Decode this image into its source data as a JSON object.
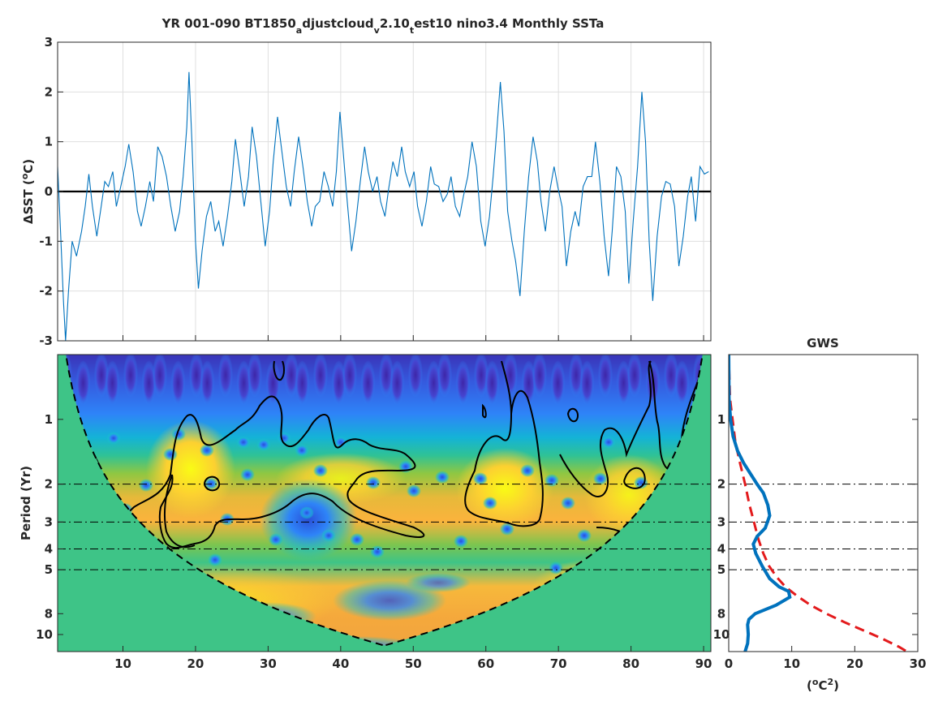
{
  "chart_data": [
    {
      "type": "line",
      "title": {
        "p1": "YR 001-090 BT1850",
        "s1": "a",
        "p2": "djustcloud",
        "s2": "v",
        "p3": "2.10",
        "s3": "t",
        "p4": "est10 nino3.4 Monthly SSTa"
      },
      "ylabel": {
        "delta": "Δ",
        "rest": "SST (",
        "deg": "o",
        "unit": "C)"
      },
      "xlim": [
        1,
        91
      ],
      "ylim": [
        -3,
        3
      ],
      "xticks": [
        10,
        20,
        30,
        40,
        50,
        60,
        70,
        80,
        90
      ],
      "yticks": [
        -3,
        -2,
        -1,
        0,
        1,
        2,
        3
      ],
      "grid": true,
      "zero_line": 0,
      "series": [
        {
          "color": "#0072bd",
          "points": [
            [
              1.0,
              0.5
            ],
            [
              1.4,
              -0.8
            ],
            [
              1.8,
              -2.2
            ],
            [
              2.1,
              -3.0
            ],
            [
              2.5,
              -2.0
            ],
            [
              3.0,
              -1.0
            ],
            [
              3.6,
              -1.3
            ],
            [
              4.3,
              -0.8
            ],
            [
              4.8,
              -0.3
            ],
            [
              5.3,
              0.35
            ],
            [
              5.8,
              -0.3
            ],
            [
              6.4,
              -0.9
            ],
            [
              7.0,
              -0.3
            ],
            [
              7.5,
              0.2
            ],
            [
              8.0,
              0.1
            ],
            [
              8.6,
              0.4
            ],
            [
              9.1,
              -0.3
            ],
            [
              9.7,
              0.1
            ],
            [
              10.3,
              0.5
            ],
            [
              10.8,
              0.95
            ],
            [
              11.4,
              0.4
            ],
            [
              12.0,
              -0.4
            ],
            [
              12.5,
              -0.7
            ],
            [
              13.1,
              -0.3
            ],
            [
              13.7,
              0.2
            ],
            [
              14.2,
              -0.2
            ],
            [
              14.8,
              0.9
            ],
            [
              15.4,
              0.7
            ],
            [
              16.0,
              0.3
            ],
            [
              16.6,
              -0.3
            ],
            [
              17.2,
              -0.8
            ],
            [
              17.8,
              -0.4
            ],
            [
              18.3,
              0.3
            ],
            [
              18.8,
              1.3
            ],
            [
              19.1,
              2.4
            ],
            [
              19.5,
              1.0
            ],
            [
              20.0,
              -1.0
            ],
            [
              20.4,
              -1.95
            ],
            [
              20.9,
              -1.2
            ],
            [
              21.5,
              -0.5
            ],
            [
              22.1,
              -0.2
            ],
            [
              22.7,
              -0.8
            ],
            [
              23.2,
              -0.6
            ],
            [
              23.8,
              -1.1
            ],
            [
              24.4,
              -0.5
            ],
            [
              25.0,
              0.2
            ],
            [
              25.5,
              1.05
            ],
            [
              26.1,
              0.4
            ],
            [
              26.7,
              -0.3
            ],
            [
              27.3,
              0.3
            ],
            [
              27.8,
              1.3
            ],
            [
              28.4,
              0.7
            ],
            [
              29.0,
              -0.2
            ],
            [
              29.6,
              -1.1
            ],
            [
              30.2,
              -0.4
            ],
            [
              30.7,
              0.6
            ],
            [
              31.3,
              1.5
            ],
            [
              31.9,
              0.8
            ],
            [
              32.5,
              0.1
            ],
            [
              33.1,
              -0.3
            ],
            [
              33.6,
              0.4
            ],
            [
              34.2,
              1.1
            ],
            [
              34.8,
              0.5
            ],
            [
              35.4,
              -0.2
            ],
            [
              36.0,
              -0.7
            ],
            [
              36.5,
              -0.3
            ],
            [
              37.1,
              -0.2
            ],
            [
              37.7,
              0.4
            ],
            [
              38.3,
              0.1
            ],
            [
              38.9,
              -0.3
            ],
            [
              39.4,
              0.4
            ],
            [
              39.9,
              1.6
            ],
            [
              40.4,
              0.7
            ],
            [
              40.9,
              -0.2
            ],
            [
              41.5,
              -1.2
            ],
            [
              42.1,
              -0.6
            ],
            [
              42.7,
              0.2
            ],
            [
              43.3,
              0.9
            ],
            [
              43.8,
              0.4
            ],
            [
              44.4,
              0.0
            ],
            [
              45.0,
              0.3
            ],
            [
              45.5,
              -0.2
            ],
            [
              46.1,
              -0.5
            ],
            [
              46.6,
              0.05
            ],
            [
              47.2,
              0.6
            ],
            [
              47.8,
              0.3
            ],
            [
              48.4,
              0.9
            ],
            [
              48.9,
              0.4
            ],
            [
              49.5,
              0.1
            ],
            [
              50.1,
              0.4
            ],
            [
              50.6,
              -0.3
            ],
            [
              51.2,
              -0.7
            ],
            [
              51.8,
              -0.2
            ],
            [
              52.4,
              0.5
            ],
            [
              52.9,
              0.15
            ],
            [
              53.5,
              0.1
            ],
            [
              54.1,
              -0.2
            ],
            [
              54.7,
              -0.05
            ],
            [
              55.2,
              0.3
            ],
            [
              55.8,
              -0.3
            ],
            [
              56.4,
              -0.5
            ],
            [
              56.9,
              -0.1
            ],
            [
              57.5,
              0.3
            ],
            [
              58.1,
              1.0
            ],
            [
              58.7,
              0.5
            ],
            [
              59.3,
              -0.6
            ],
            [
              59.9,
              -1.1
            ],
            [
              60.5,
              -0.5
            ],
            [
              61.0,
              0.3
            ],
            [
              61.5,
              1.2
            ],
            [
              62.0,
              2.2
            ],
            [
              62.5,
              1.2
            ],
            [
              63.0,
              -0.4
            ],
            [
              63.6,
              -1.0
            ],
            [
              64.1,
              -1.4
            ],
            [
              64.7,
              -2.1
            ],
            [
              65.3,
              -0.8
            ],
            [
              65.9,
              0.3
            ],
            [
              66.5,
              1.1
            ],
            [
              67.1,
              0.6
            ],
            [
              67.6,
              -0.2
            ],
            [
              68.2,
              -0.8
            ],
            [
              68.8,
              0.0
            ],
            [
              69.4,
              0.5
            ],
            [
              69.9,
              0.1
            ],
            [
              70.5,
              -0.3
            ],
            [
              71.1,
              -1.5
            ],
            [
              71.7,
              -0.8
            ],
            [
              72.3,
              -0.4
            ],
            [
              72.8,
              -0.7
            ],
            [
              73.4,
              0.1
            ],
            [
              74.0,
              0.3
            ],
            [
              74.6,
              0.3
            ],
            [
              75.1,
              1.0
            ],
            [
              75.7,
              0.2
            ],
            [
              76.3,
              -0.9
            ],
            [
              76.9,
              -1.7
            ],
            [
              77.4,
              -0.8
            ],
            [
              78.0,
              0.5
            ],
            [
              78.6,
              0.3
            ],
            [
              79.2,
              -0.4
            ],
            [
              79.7,
              -1.85
            ],
            [
              80.3,
              -0.6
            ],
            [
              80.9,
              0.5
            ],
            [
              81.5,
              2.0
            ],
            [
              82.0,
              1.0
            ],
            [
              82.5,
              -1.0
            ],
            [
              83.0,
              -2.2
            ],
            [
              83.6,
              -0.9
            ],
            [
              84.2,
              -0.1
            ],
            [
              84.8,
              0.2
            ],
            [
              85.4,
              0.15
            ],
            [
              86.0,
              -0.3
            ],
            [
              86.6,
              -1.5
            ],
            [
              87.2,
              -0.9
            ],
            [
              87.8,
              -0.1
            ],
            [
              88.3,
              0.3
            ],
            [
              88.9,
              -0.6
            ],
            [
              89.5,
              0.5
            ],
            [
              90.1,
              0.35
            ],
            [
              90.7,
              0.4
            ]
          ]
        }
      ]
    },
    {
      "type": "heatmap",
      "ylabel": "Period (Yr)",
      "xlim": [
        1,
        91
      ],
      "ylog": true,
      "ylim": [
        0.5,
        12
      ],
      "xticks": [
        10,
        20,
        30,
        40,
        50,
        60,
        70,
        80,
        90
      ],
      "yticks": [
        1,
        2,
        3,
        4,
        5,
        8,
        10
      ],
      "reference_periods": [
        2,
        3,
        4,
        5
      ],
      "colormap": [
        "#3e26a8",
        "#2e84f8",
        "#18bdd0",
        "#3ec487",
        "#9bc638",
        "#fbb33c",
        "#f9fb15"
      ],
      "note": "wavelet power spectrum with significance contours and cone of influence"
    },
    {
      "type": "line",
      "title": "GWS",
      "xlabel": {
        "open": "(",
        "deg": "o",
        "unit": "C",
        "sq": "2",
        "close": ")"
      },
      "xlim": [
        0,
        30
      ],
      "ylog": true,
      "ylim": [
        0.5,
        12
      ],
      "xticks": [
        0,
        10,
        20,
        30
      ],
      "yticks": [
        1,
        2,
        3,
        4,
        5,
        8,
        10
      ],
      "series": [
        {
          "color": "#0072bd",
          "style": "solid",
          "points": [
            [
              0.0,
              0.5
            ],
            [
              0.05,
              0.8
            ],
            [
              0.3,
              1.0
            ],
            [
              0.7,
              1.2
            ],
            [
              1.4,
              1.4
            ],
            [
              2.4,
              1.6
            ],
            [
              3.5,
              1.8
            ],
            [
              4.5,
              2.0
            ],
            [
              5.5,
              2.2
            ],
            [
              6.2,
              2.5
            ],
            [
              6.5,
              2.8
            ],
            [
              5.8,
              3.2
            ],
            [
              4.5,
              3.5
            ],
            [
              3.9,
              3.8
            ],
            [
              4.3,
              4.2
            ],
            [
              5.3,
              4.8
            ],
            [
              6.5,
              5.5
            ],
            [
              8.0,
              6.0
            ],
            [
              9.5,
              6.3
            ],
            [
              9.7,
              6.7
            ],
            [
              7.5,
              7.3
            ],
            [
              4.2,
              8.0
            ],
            [
              3.2,
              8.5
            ],
            [
              3.0,
              9.0
            ],
            [
              3.1,
              10.0
            ],
            [
              3.0,
              11.0
            ],
            [
              2.6,
              12.0
            ]
          ]
        },
        {
          "color": "#e31a1c",
          "style": "dashed",
          "points": [
            [
              0.0,
              0.5
            ],
            [
              0.2,
              0.8
            ],
            [
              0.6,
              1.0
            ],
            [
              1.1,
              1.3
            ],
            [
              1.8,
              1.6
            ],
            [
              2.6,
              2.0
            ],
            [
              3.3,
              2.5
            ],
            [
              4.0,
              3.0
            ],
            [
              4.7,
              3.6
            ],
            [
              5.5,
              4.2
            ],
            [
              6.4,
              4.8
            ],
            [
              7.6,
              5.4
            ],
            [
              9.0,
              6.0
            ],
            [
              10.8,
              6.6
            ],
            [
              13.0,
              7.3
            ],
            [
              15.5,
              8.0
            ],
            [
              18.5,
              8.8
            ],
            [
              21.5,
              9.6
            ],
            [
              24.5,
              10.5
            ],
            [
              27.0,
              11.4
            ],
            [
              28.3,
              12.0
            ]
          ]
        }
      ]
    }
  ]
}
